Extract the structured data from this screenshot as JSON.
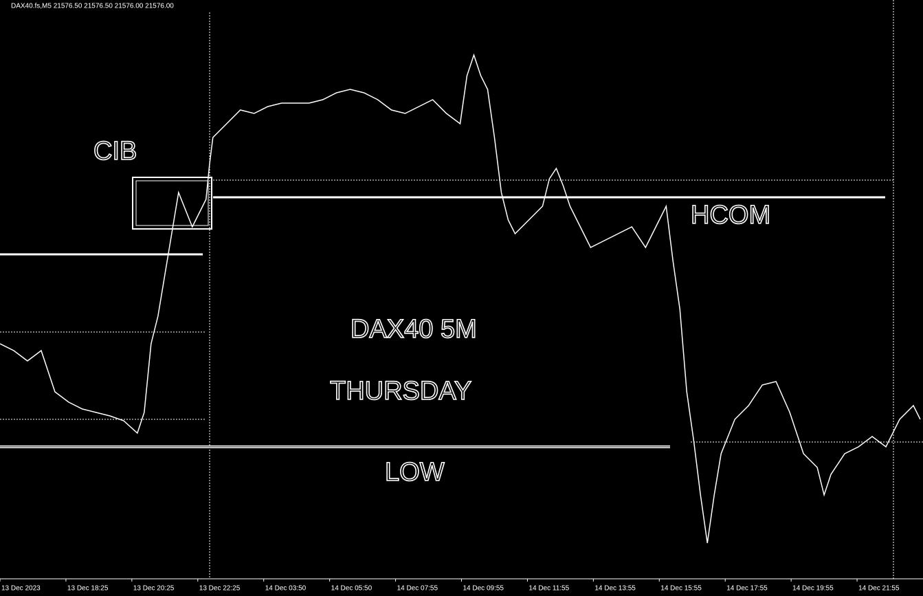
{
  "chart_data": {
    "type": "line",
    "title": "DAX40.fs,M5  21576.50 21576.50 21576.00 21576.00",
    "annotations": [
      "CIB",
      "HCOM",
      "DAX40 5M",
      "THURSDAY",
      "LOW"
    ],
    "color": "#ffffff",
    "xlim": [
      0,
      336
    ],
    "ylim": [
      0,
      840
    ],
    "xticks": [
      {
        "value": 0,
        "label": "13 Dec 2023"
      },
      {
        "value": 24,
        "label": "13 Dec 18:25"
      },
      {
        "value": 48,
        "label": "13 Dec 20:25"
      },
      {
        "value": 72,
        "label": "13 Dec 22:25"
      },
      {
        "value": 96,
        "label": "14 Dec 03:50"
      },
      {
        "value": 120,
        "label": "14 Dec 05:50"
      },
      {
        "value": 144,
        "label": "14 Dec 07:55"
      },
      {
        "value": 168,
        "label": "14 Dec 09:55"
      },
      {
        "value": 192,
        "label": "14 Dec 11:55"
      },
      {
        "value": 216,
        "label": "14 Dec 13:55"
      },
      {
        "value": 240,
        "label": "14 Dec 15:55"
      },
      {
        "value": 264,
        "label": "14 Dec 17:55"
      },
      {
        "value": 288,
        "label": "14 Dec 19:55"
      },
      {
        "value": 312,
        "label": "14 Dec 21:55"
      }
    ],
    "x": [
      0,
      5,
      10,
      15,
      20,
      25,
      30,
      35,
      40,
      45,
      50,
      52.5,
      55,
      57.5,
      60,
      62.5,
      65,
      70,
      75,
      76.25,
      77.5,
      82.5,
      87.5,
      92.5,
      97.5,
      102.5,
      107.5,
      112.5,
      117.5,
      122.5,
      127.5,
      132.5,
      137.5,
      142.5,
      147.5,
      152.5,
      157.5,
      162.5,
      167.5,
      170,
      172.5,
      175,
      177.5,
      180,
      182.5,
      185,
      187.5,
      192.5,
      197.5,
      200,
      202.5,
      205,
      207.5,
      210,
      215,
      220,
      225,
      230,
      235,
      240,
      242.5,
      245,
      247.5,
      250,
      252.5,
      255,
      257.5,
      260,
      262.5,
      267.5,
      272.5,
      277.5,
      282.5,
      287.5,
      292.5,
      297.5,
      300,
      302.5,
      307.5,
      312.5,
      317.5,
      322.5,
      327.5,
      332.5,
      335
    ],
    "values": [
      340,
      330,
      315,
      330,
      270,
      255,
      245,
      240,
      235,
      228,
      210,
      240,
      340,
      380,
      440,
      500,
      560,
      510,
      550,
      600,
      640,
      660,
      680,
      675,
      685,
      690,
      690,
      690,
      695,
      705,
      710,
      705,
      695,
      680,
      675,
      685,
      695,
      675,
      660,
      730,
      760,
      730,
      710,
      640,
      560,
      520,
      500,
      520,
      540,
      580,
      595,
      570,
      540,
      520,
      480,
      490,
      500,
      510,
      480,
      520,
      540,
      460,
      390,
      270,
      200,
      120,
      50,
      120,
      180,
      230,
      250,
      280,
      285,
      240,
      180,
      160,
      120,
      150,
      180,
      190,
      205,
      190,
      230,
      250,
      230
    ],
    "levels": [
      553,
      578,
      190,
      357,
      470,
      230,
      197
    ]
  }
}
